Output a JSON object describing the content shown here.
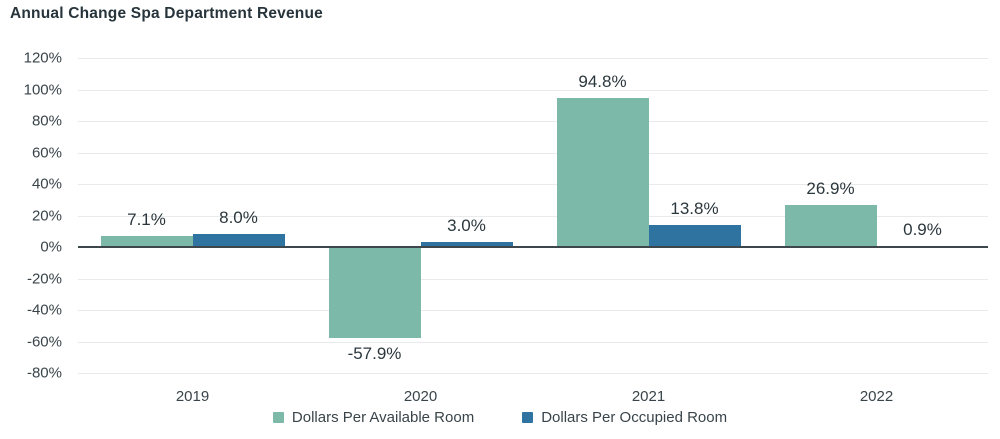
{
  "title": "Annual Change Spa Department Revenue",
  "colors": {
    "available": "#7cb9a8",
    "occupied": "#2f74a1",
    "grid": "#e9eaeb",
    "zero_line": "#3d464b",
    "title_text": "#27343b",
    "axis_text": "#39444a",
    "label_text": "#2b373d",
    "background": "#ffffff"
  },
  "chart_data": {
    "type": "bar",
    "title": "Annual Change Spa Department Revenue",
    "categories": [
      "2019",
      "2020",
      "2021",
      "2022"
    ],
    "series": [
      {
        "name": "Dollars Per Available Room",
        "color_key": "available",
        "values": [
          7.1,
          -57.9,
          94.8,
          26.9
        ],
        "labels": [
          "7.1%",
          "-57.9%",
          "94.8%",
          "26.9%"
        ]
      },
      {
        "name": "Dollars Per Occupied Room",
        "color_key": "occupied",
        "values": [
          8.0,
          3.0,
          13.8,
          0.9
        ],
        "labels": [
          "8.0%",
          "3.0%",
          "13.8%",
          "0.9%"
        ]
      }
    ],
    "xlabel": "",
    "ylabel": "",
    "ylim": [
      -80,
      120
    ],
    "ytick_step": 20,
    "ytick_labels": [
      "120%",
      "100%",
      "80%",
      "60%",
      "40%",
      "20%",
      "0%",
      "-20%",
      "-40%",
      "-60%",
      "-80%"
    ],
    "grid": true,
    "legend_position": "bottom"
  },
  "legend": {
    "items": [
      {
        "label": "Dollars Per Available Room",
        "color_key": "available"
      },
      {
        "label": "Dollars Per Occupied Room",
        "color_key": "occupied"
      }
    ]
  }
}
